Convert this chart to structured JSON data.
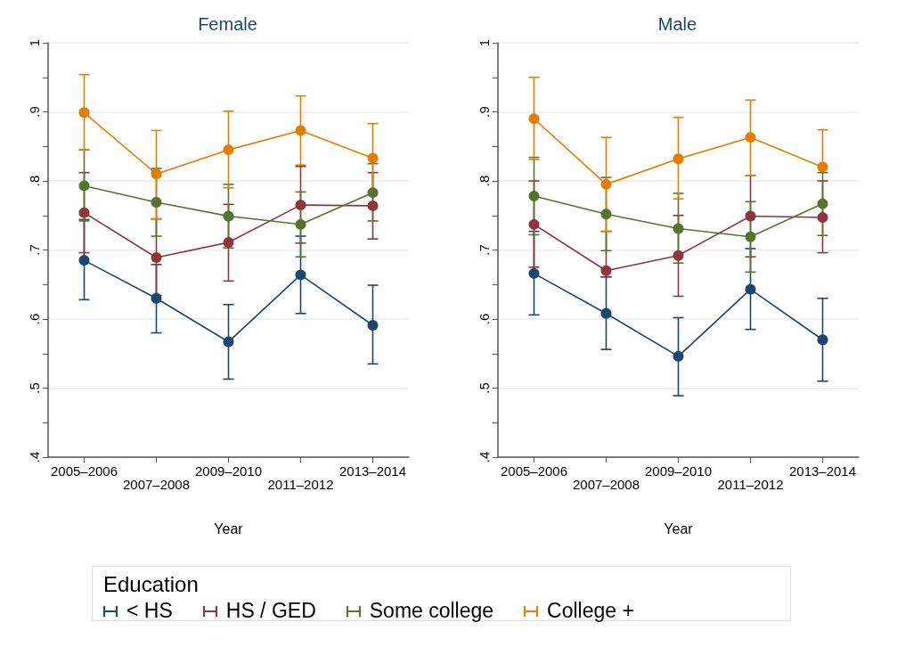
{
  "chart_data": [
    {
      "type": "line",
      "title": "Female",
      "xlabel": "Year",
      "categories": [
        "2005–2006",
        "2007–2008",
        "2009–2010",
        "2011–2012",
        "2013–2014"
      ],
      "ylim": [
        0.4,
        1
      ],
      "yticks": [
        {
          "value": 0.4,
          "label": ".4"
        },
        {
          "value": 0.45,
          "label": null
        },
        {
          "value": 0.5,
          "label": ".5"
        },
        {
          "value": 0.55,
          "label": null
        },
        {
          "value": 0.6,
          "label": ".6"
        },
        {
          "value": 0.65,
          "label": null
        },
        {
          "value": 0.7,
          "label": ".7"
        },
        {
          "value": 0.75,
          "label": null
        },
        {
          "value": 0.8,
          "label": ".8"
        },
        {
          "value": 0.85,
          "label": null
        },
        {
          "value": 0.9,
          "label": ".9"
        },
        {
          "value": 0.95,
          "label": null
        },
        {
          "value": 1,
          "label": "1"
        }
      ],
      "grid": "y",
      "marker": "circle",
      "legend": "bottom",
      "legend_title": "Education",
      "series": [
        {
          "name": "< HS",
          "color": "#1a476f",
          "values": [
            0.685,
            0.63,
            0.567,
            0.664,
            0.591
          ],
          "errors": [
            [
              0.628,
              0.744
            ],
            [
              0.58,
              0.679
            ],
            [
              0.513,
              0.621
            ],
            [
              0.608,
              0.72
            ],
            [
              0.535,
              0.649
            ]
          ]
        },
        {
          "name": "HS / GED",
          "color": "#90353b",
          "values": [
            0.754,
            0.689,
            0.711,
            0.765,
            0.764
          ],
          "errors": [
            [
              0.696,
              0.812
            ],
            [
              0.634,
              0.745
            ],
            [
              0.655,
              0.766
            ],
            [
              0.71,
              0.821
            ],
            [
              0.716,
              0.812
            ]
          ]
        },
        {
          "name": "Some college",
          "color": "#55752f",
          "values": [
            0.793,
            0.769,
            0.749,
            0.737,
            0.783
          ],
          "errors": [
            [
              0.742,
              0.845
            ],
            [
              0.72,
              0.818
            ],
            [
              0.703,
              0.795
            ],
            [
              0.69,
              0.784
            ],
            [
              0.742,
              0.825
            ]
          ]
        },
        {
          "name": "College +",
          "color": "#e37e00",
          "values": [
            0.899,
            0.81,
            0.845,
            0.873,
            0.833
          ],
          "errors": [
            [
              0.845,
              0.954
            ],
            [
              0.745,
              0.873
            ],
            [
              0.79,
              0.901
            ],
            [
              0.823,
              0.923
            ],
            [
              0.785,
              0.883
            ]
          ]
        }
      ]
    },
    {
      "type": "line",
      "title": "Male",
      "xlabel": "Year",
      "categories": [
        "2005–2006",
        "2007–2008",
        "2009–2010",
        "2011–2012",
        "2013–2014"
      ],
      "ylim": [
        0.4,
        1
      ],
      "yticks": [
        {
          "value": 0.4,
          "label": ".4"
        },
        {
          "value": 0.45,
          "label": null
        },
        {
          "value": 0.5,
          "label": ".5"
        },
        {
          "value": 0.55,
          "label": null
        },
        {
          "value": 0.6,
          "label": ".6"
        },
        {
          "value": 0.65,
          "label": null
        },
        {
          "value": 0.7,
          "label": ".7"
        },
        {
          "value": 0.75,
          "label": null
        },
        {
          "value": 0.8,
          "label": ".8"
        },
        {
          "value": 0.85,
          "label": null
        },
        {
          "value": 0.9,
          "label": ".9"
        },
        {
          "value": 0.95,
          "label": null
        },
        {
          "value": 1,
          "label": "1"
        }
      ],
      "grid": "y",
      "marker": "circle",
      "series": [
        {
          "color": "#1a476f",
          "values": [
            0.666,
            0.608,
            0.546,
            0.643,
            0.57
          ],
          "errors": [
            [
              0.606,
              0.727
            ],
            [
              0.556,
              0.661
            ],
            [
              0.489,
              0.602
            ],
            [
              0.585,
              0.702
            ],
            [
              0.51,
              0.63
            ]
          ]
        },
        {
          "color": "#90353b",
          "values": [
            0.737,
            0.67,
            0.692,
            0.749,
            0.747
          ],
          "errors": [
            [
              0.675,
              0.8
            ],
            [
              0.661,
              0.727
            ],
            [
              0.633,
              0.75
            ],
            [
              0.69,
              0.808
            ],
            [
              0.696,
              0.8
            ]
          ]
        },
        {
          "color": "#55752f",
          "values": [
            0.778,
            0.752,
            0.731,
            0.719,
            0.767
          ],
          "errors": [
            [
              0.722,
              0.834
            ],
            [
              0.699,
              0.805
            ],
            [
              0.681,
              0.782
            ],
            [
              0.668,
              0.77
            ],
            [
              0.721,
              0.812
            ]
          ]
        },
        {
          "color": "#e37e00",
          "values": [
            0.89,
            0.795,
            0.832,
            0.863,
            0.82
          ],
          "errors": [
            [
              0.831,
              0.95
            ],
            [
              0.727,
              0.863
            ],
            [
              0.774,
              0.892
            ],
            [
              0.808,
              0.917
            ],
            [
              0.82,
              0.874
            ]
          ]
        }
      ]
    }
  ]
}
